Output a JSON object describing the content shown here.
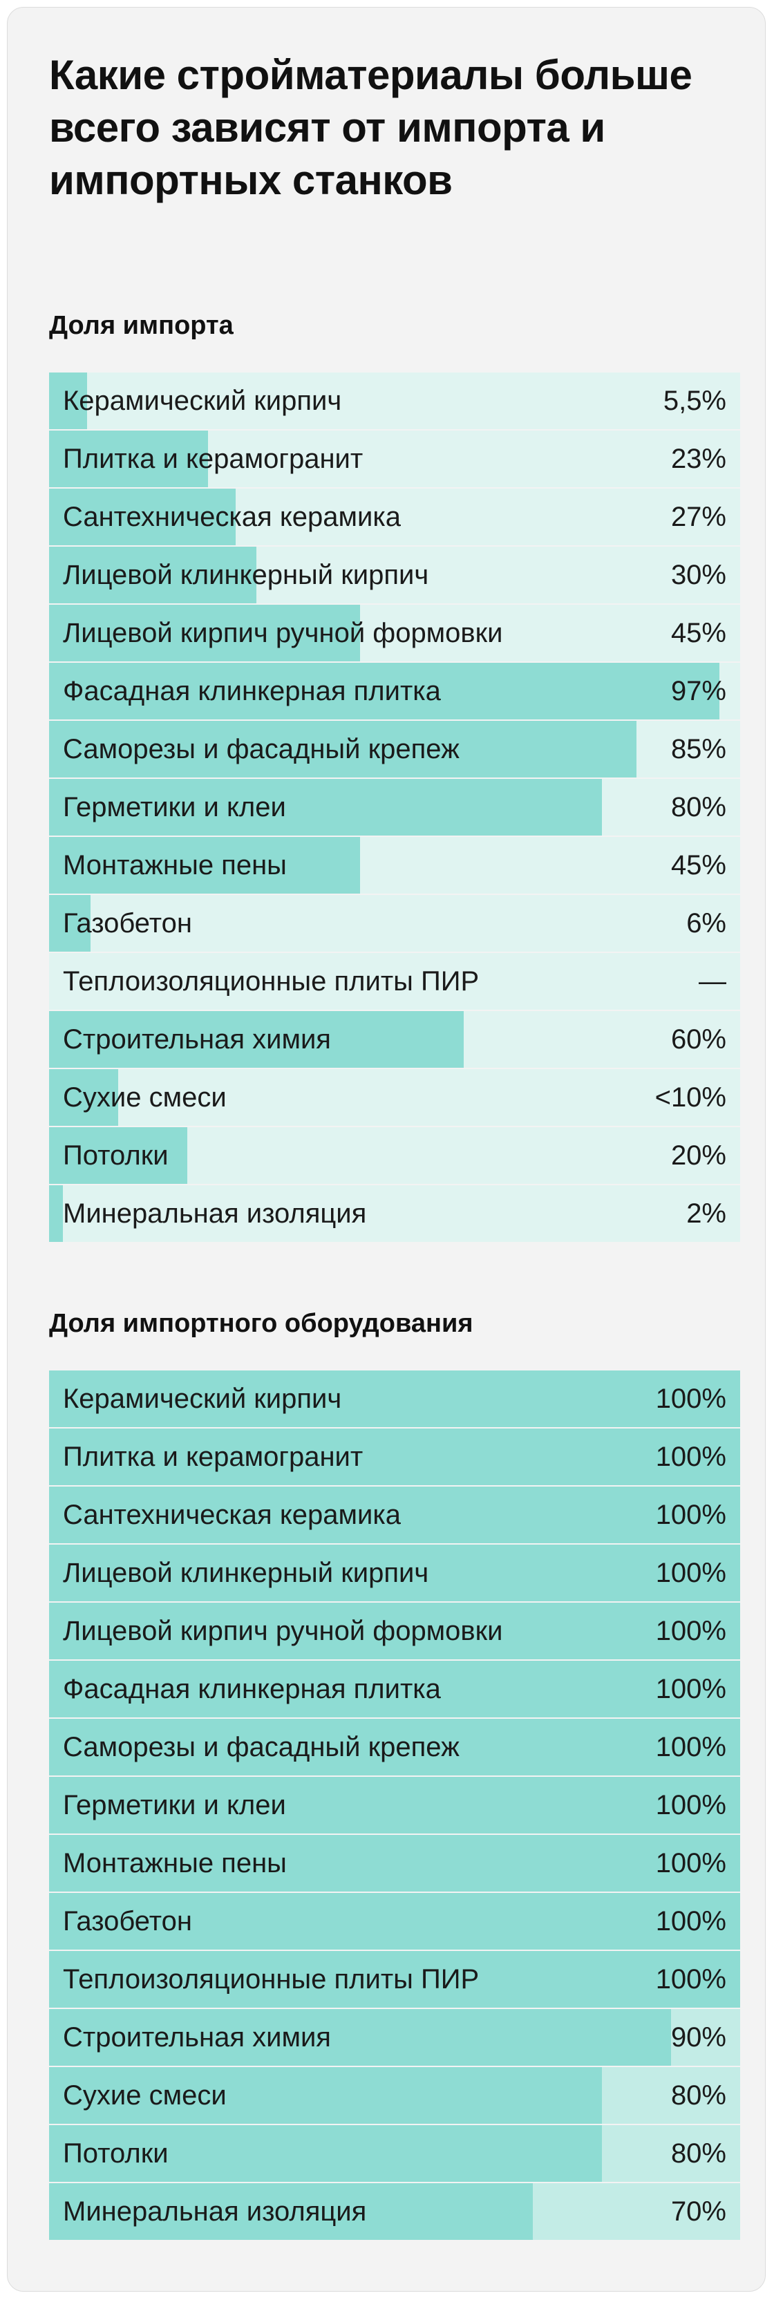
{
  "title": "Какие стройматериалы больше всего зависят от импорта и импортных станков",
  "colors": {
    "card_background": "#f3f3f3",
    "chart1_track": "#e0f4f1",
    "chart2_track": "#c3ece6",
    "bar_fill": "#8edcd3"
  },
  "chart_data": [
    {
      "type": "bar",
      "orientation": "horizontal",
      "title": "Доля импорта",
      "unit": "%",
      "xlim": [
        0,
        100
      ],
      "categories": [
        "Керамический кирпич",
        "Плитка и керамогранит",
        "Сантехническая керамика",
        "Лицевой клинкерный кирпич",
        "Лицевой кирпич ручной формовки",
        "Фасадная клинкерная плитка",
        "Саморезы и фасадный крепеж",
        "Герметики и клеи",
        "Монтажные пены",
        "Газобетон",
        "Теплоизоляционные плиты ПИР",
        "Строительная химия",
        "Сухие смеси",
        "Потолки",
        "Минеральная изоляция"
      ],
      "values": [
        5.5,
        23,
        27,
        30,
        45,
        97,
        85,
        80,
        45,
        6,
        null,
        60,
        10,
        20,
        2
      ],
      "value_labels": [
        "5,5%",
        "23%",
        "27%",
        "30%",
        "45%",
        "97%",
        "85%",
        "80%",
        "45%",
        "6%",
        "—",
        "60%",
        "<10%",
        "20%",
        "2%"
      ]
    },
    {
      "type": "bar",
      "orientation": "horizontal",
      "title": "Доля импортного оборудования",
      "unit": "%",
      "xlim": [
        0,
        100
      ],
      "categories": [
        "Керамический кирпич",
        "Плитка и керамогранит",
        "Сантехническая керамика",
        "Лицевой клинкерный кирпич",
        "Лицевой кирпич ручной формовки",
        "Фасадная клинкерная плитка",
        "Саморезы и фасадный крепеж",
        "Герметики и клеи",
        "Монтажные пены",
        "Газобетон",
        "Теплоизоляционные плиты ПИР",
        "Строительная химия",
        "Сухие смеси",
        "Потолки",
        "Минеральная изоляция"
      ],
      "values": [
        100,
        100,
        100,
        100,
        100,
        100,
        100,
        100,
        100,
        100,
        100,
        90,
        80,
        80,
        70
      ],
      "value_labels": [
        "100%",
        "100%",
        "100%",
        "100%",
        "100%",
        "100%",
        "100%",
        "100%",
        "100%",
        "100%",
        "100%",
        "90%",
        "80%",
        "80%",
        "70%"
      ]
    }
  ]
}
